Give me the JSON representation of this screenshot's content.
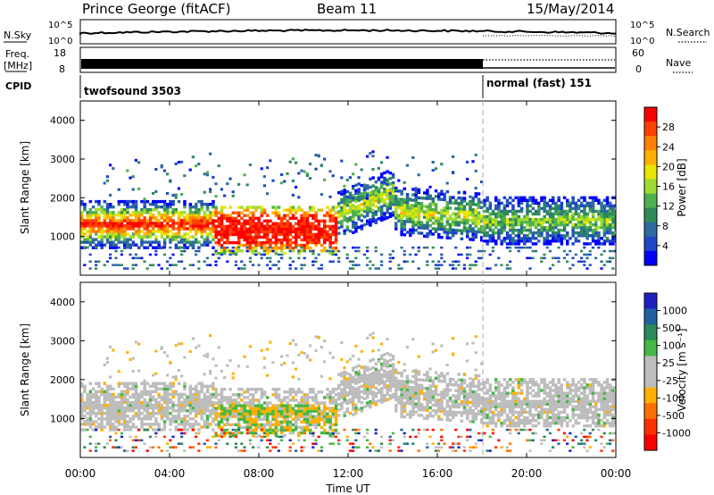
{
  "header": {
    "site": "Prince George (fitACF)",
    "beam": "Beam 11",
    "date": "15/May/2014"
  },
  "strips": {
    "nsky_label": "N.Sky",
    "nsearch_label": "N.Search",
    "left_ticks": [
      "10^5",
      "10^0"
    ],
    "right_ticks": [
      "10^5",
      "10^0"
    ],
    "freq_label_1": "Freq.",
    "freq_label_2": "[MHz]",
    "freq_ticks": [
      "18",
      "8"
    ],
    "nave_label": "Nave",
    "nave_ticks": [
      "60",
      "0"
    ],
    "cpid_label": "CPID",
    "cpid_1": "twofsound 3503",
    "cpid_2": "normal (fast) 151"
  },
  "panels": {
    "ylabel": "Slant Range [km]",
    "yticks": [
      "4000",
      "3000",
      "2000",
      "1000"
    ],
    "xlabel": "Time UT",
    "xticks": [
      "00:00",
      "04:00",
      "08:00",
      "12:00",
      "16:00",
      "20:00",
      "00:00"
    ]
  },
  "power_bar": {
    "label": "Power [dB]",
    "ticks": [
      "28",
      "24",
      "20",
      "16",
      "12",
      "8",
      "4"
    ],
    "colors": [
      "#ff0000",
      "#ff4000",
      "#ff8000",
      "#ffb000",
      "#e6e600",
      "#a0dc30",
      "#50b050",
      "#2f8a5a",
      "#2c6aa0",
      "#1e46c8",
      "#0000ff"
    ]
  },
  "velocity_bar": {
    "label": "Velocity [m s⁻¹]",
    "ticks": [
      "1000",
      "500",
      "100",
      "25",
      "-25",
      "-100",
      "-500",
      "-1000"
    ],
    "colors": [
      "#2020c0",
      "#2060a0",
      "#2a8a5a",
      "#44b844",
      "#bdbdbd",
      "#bdbdbd",
      "#ffb000",
      "#ff7000",
      "#ff3000",
      "#ff0000"
    ]
  },
  "chart_data": {
    "type": "heatmap",
    "title": "Prince George (fitACF) Beam 11 15/May/2014",
    "x_range": [
      "00:00",
      "24:00"
    ],
    "y_range": [
      0,
      4500
    ],
    "xlabel": "Time UT",
    "ylabel": "Slant Range [km]",
    "panels": [
      {
        "name": "Power [dB]",
        "scale": [
          4,
          28
        ]
      },
      {
        "name": "Velocity [m s-1]",
        "scale": [
          -1000,
          1000
        ]
      }
    ],
    "mode_change_hour": 18.0
  }
}
